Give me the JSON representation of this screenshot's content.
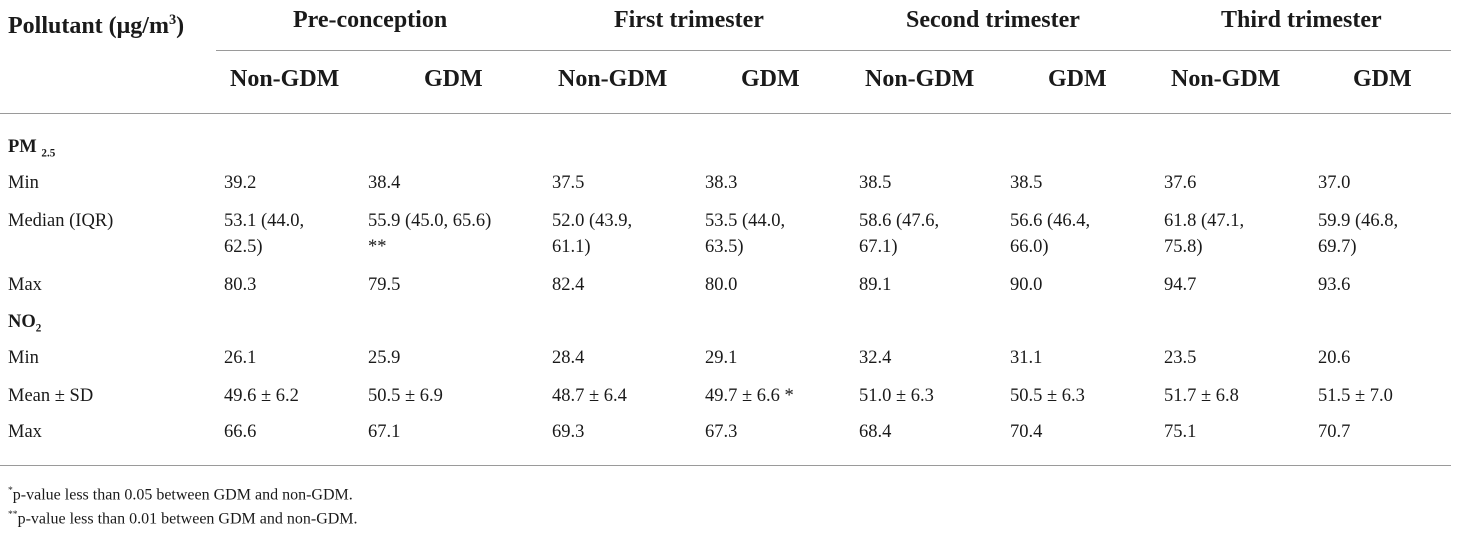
{
  "header": {
    "pollutant_label": "Pollutant (μg/m",
    "pollutant_sup": "3",
    "pollutant_close": ")",
    "periods": [
      "Pre-conception",
      "First trimester",
      "Second trimester",
      "Third trimester"
    ],
    "groups": [
      "Non-GDM",
      "GDM",
      "Non-GDM",
      "GDM",
      "Non-GDM",
      "GDM",
      "Non-GDM",
      "GDM"
    ]
  },
  "sections": [
    {
      "name_main": "PM",
      "name_sub": "2.5",
      "rows": [
        {
          "label": "Min",
          "cells": [
            [
              "39.2"
            ],
            [
              "38.4"
            ],
            [
              "37.5"
            ],
            [
              "38.3"
            ],
            [
              "38.5"
            ],
            [
              "38.5"
            ],
            [
              "37.6"
            ],
            [
              "37.0"
            ]
          ]
        },
        {
          "label": "Median (IQR)",
          "cells": [
            [
              "53.1 (44.0,",
              "62.5)"
            ],
            [
              "55.9 (45.0, 65.6)",
              "**"
            ],
            [
              "52.0 (43.9,",
              "61.1)"
            ],
            [
              "53.5 (44.0,",
              "63.5)"
            ],
            [
              "58.6 (47.6,",
              "67.1)"
            ],
            [
              "56.6 (46.4,",
              "66.0)"
            ],
            [
              "61.8 (47.1,",
              "75.8)"
            ],
            [
              "59.9 (46.8,",
              "69.7)"
            ]
          ]
        },
        {
          "label": "Max",
          "cells": [
            [
              "80.3"
            ],
            [
              "79.5"
            ],
            [
              "82.4"
            ],
            [
              "80.0"
            ],
            [
              "89.1"
            ],
            [
              "90.0"
            ],
            [
              "94.7"
            ],
            [
              "93.6"
            ]
          ]
        }
      ]
    },
    {
      "name_main": "NO",
      "name_sub": "2",
      "rows": [
        {
          "label": "Min",
          "cells": [
            [
              "26.1"
            ],
            [
              "25.9"
            ],
            [
              "28.4"
            ],
            [
              "29.1"
            ],
            [
              "32.4"
            ],
            [
              "31.1"
            ],
            [
              "23.5"
            ],
            [
              "20.6"
            ]
          ]
        },
        {
          "label": "Mean ± SD",
          "cells": [
            [
              "49.6 ± 6.2"
            ],
            [
              "50.5 ± 6.9"
            ],
            [
              "48.7 ± 6.4"
            ],
            [
              "49.7 ± 6.6 *"
            ],
            [
              "51.0 ± 6.3"
            ],
            [
              "50.5 ± 6.3"
            ],
            [
              "51.7 ± 6.8"
            ],
            [
              "51.5 ± 7.0"
            ]
          ]
        },
        {
          "label": "Max",
          "cells": [
            [
              "66.6"
            ],
            [
              "67.1"
            ],
            [
              "69.3"
            ],
            [
              "67.3"
            ],
            [
              "68.4"
            ],
            [
              "70.4"
            ],
            [
              "75.1"
            ],
            [
              "70.7"
            ]
          ]
        }
      ]
    }
  ],
  "footnotes": [
    {
      "mark": "*",
      "text": "p-value less than 0.05 between GDM and non-GDM."
    },
    {
      "mark": "**",
      "text": "p-value less than 0.01 between GDM and non-GDM."
    }
  ]
}
